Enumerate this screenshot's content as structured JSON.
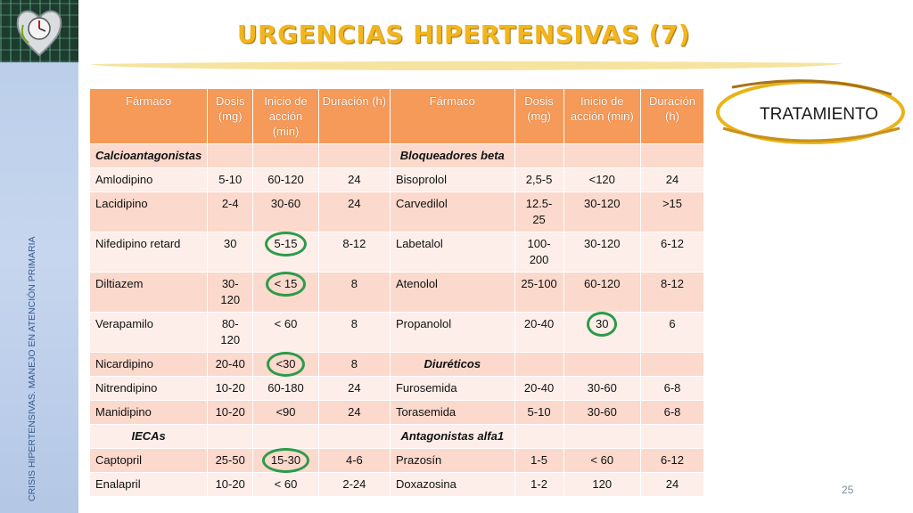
{
  "title": "URGENCIAS HIPERTENSIVAS (7)",
  "side_text": "CRISIS HIPERTENSIVAS. MANEJO EN ATENCIÓN PRIMARIA",
  "tratamiento_label": "TRATAMIENTO",
  "page_number": "25",
  "colors": {
    "title": "#f2b51c",
    "header": "#f59a58",
    "row_alt": "#fbd9cc",
    "row_base": "#fdeee9",
    "circle": "#2e9a4a"
  },
  "table": {
    "headers": [
      "Fármaco",
      "Dosis (mg)",
      "Inicio de acción (min)",
      "Duración (h)",
      "Fármaco",
      "Dosis (mg)",
      "Inicio de acción (min)",
      "Duración (h)"
    ],
    "rows": [
      [
        "Calcioantagonistas",
        "",
        "",
        "",
        "Bloqueadores beta",
        "",
        "",
        ""
      ],
      [
        "Amlodipino",
        "5-10",
        "60-120",
        "24",
        "Bisoprolol",
        "2,5-5",
        "<120",
        "24"
      ],
      [
        "Lacidipino",
        "2-4",
        "30-60",
        "24",
        "Carvedilol",
        "12.5-25",
        "30-120",
        ">15"
      ],
      [
        "Nifedipino retard",
        "30",
        "5-15",
        "8-12",
        "Labetalol",
        "100-200",
        "30-120",
        "6-12"
      ],
      [
        "Diltiazem",
        "30-120",
        "< 15",
        "8",
        "Atenolol",
        "25-100",
        "60-120",
        "8-12"
      ],
      [
        "Verapamilo",
        "80-120",
        "< 60",
        "8",
        "Propanolol",
        "20-40",
        "30",
        "6"
      ],
      [
        "Nicardipino",
        "20-40",
        "<30",
        "8",
        "Diuréticos",
        "",
        "",
        ""
      ],
      [
        "Nitrendipino",
        "10-20",
        "60-180",
        "24",
        "Furosemida",
        "20-40",
        "30-60",
        "6-8"
      ],
      [
        "Manidipino",
        "10-20",
        "<90",
        "24",
        "Torasemida",
        "5-10",
        "30-60",
        "6-8"
      ],
      [
        "IECAs",
        "",
        "",
        "",
        "Antagonistas alfa1",
        "",
        "",
        ""
      ],
      [
        "Captopril",
        "25-50",
        "15-30",
        "4-6",
        "Prazosín",
        "1-5",
        "< 60",
        "6-12"
      ],
      [
        "Enalapril",
        "10-20",
        "< 60",
        "2-24",
        "Doxazosina",
        "1-2",
        "120",
        "24"
      ]
    ]
  }
}
